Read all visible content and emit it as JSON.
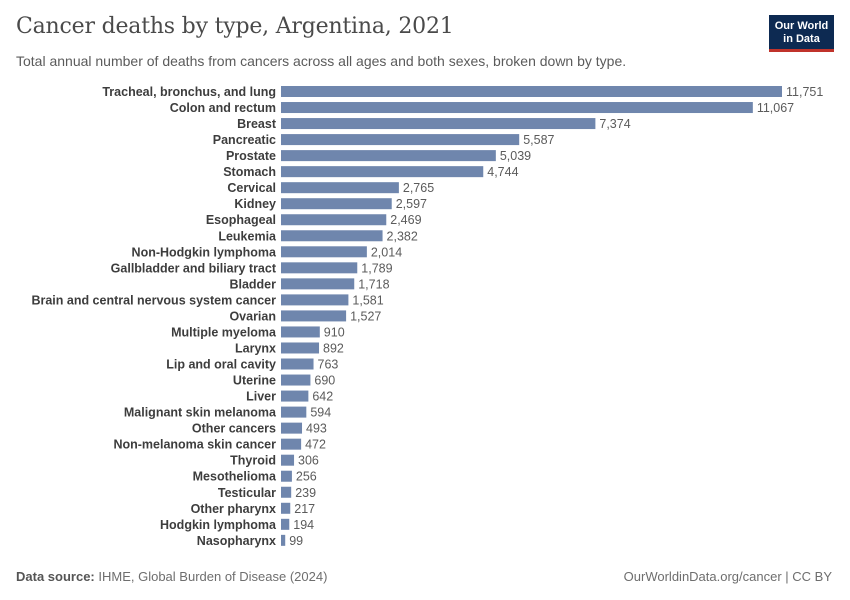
{
  "header": {
    "title": "Cancer deaths by type, Argentina, 2021",
    "subtitle": "Total annual number of deaths from cancers across all ages and both sexes, broken down by type.",
    "logo_line1": "Our World",
    "logo_line2": "in Data"
  },
  "footer": {
    "source_label": "Data source:",
    "source_text": "IHME, Global Burden of Disease (2024)",
    "credit": "OurWorldinData.org/cancer | CC BY"
  },
  "colors": {
    "bar": "#6f86ad",
    "label": "#3d3d3d",
    "value": "#5b5b5b"
  },
  "chart_data": {
    "type": "bar",
    "orientation": "horizontal",
    "categories": [
      "Tracheal, bronchus, and lung",
      "Colon and rectum",
      "Breast",
      "Pancreatic",
      "Prostate",
      "Stomach",
      "Cervical",
      "Kidney",
      "Esophageal",
      "Leukemia",
      "Non-Hodgkin lymphoma",
      "Gallbladder and biliary tract",
      "Bladder",
      "Brain and central nervous system cancer",
      "Ovarian",
      "Multiple myeloma",
      "Larynx",
      "Lip and oral cavity",
      "Uterine",
      "Liver",
      "Malignant skin melanoma",
      "Other cancers",
      "Non-melanoma skin cancer",
      "Thyroid",
      "Mesothelioma",
      "Testicular",
      "Other pharynx",
      "Hodgkin lymphoma",
      "Nasopharynx"
    ],
    "values": [
      11751,
      11067,
      7374,
      5587,
      5039,
      4744,
      2765,
      2597,
      2469,
      2382,
      2014,
      1789,
      1718,
      1581,
      1527,
      910,
      892,
      763,
      690,
      642,
      594,
      493,
      472,
      306,
      256,
      239,
      217,
      194,
      99
    ],
    "value_labels": [
      "11,751",
      "11,067",
      "7,374",
      "5,587",
      "5,039",
      "4,744",
      "2,765",
      "2,597",
      "2,469",
      "2,382",
      "2,014",
      "1,789",
      "1,718",
      "1,581",
      "1,527",
      "910",
      "892",
      "763",
      "690",
      "642",
      "594",
      "493",
      "472",
      "306",
      "256",
      "239",
      "217",
      "194",
      "99"
    ],
    "xlim": [
      0,
      11751
    ],
    "grid": false,
    "legend": "none"
  }
}
